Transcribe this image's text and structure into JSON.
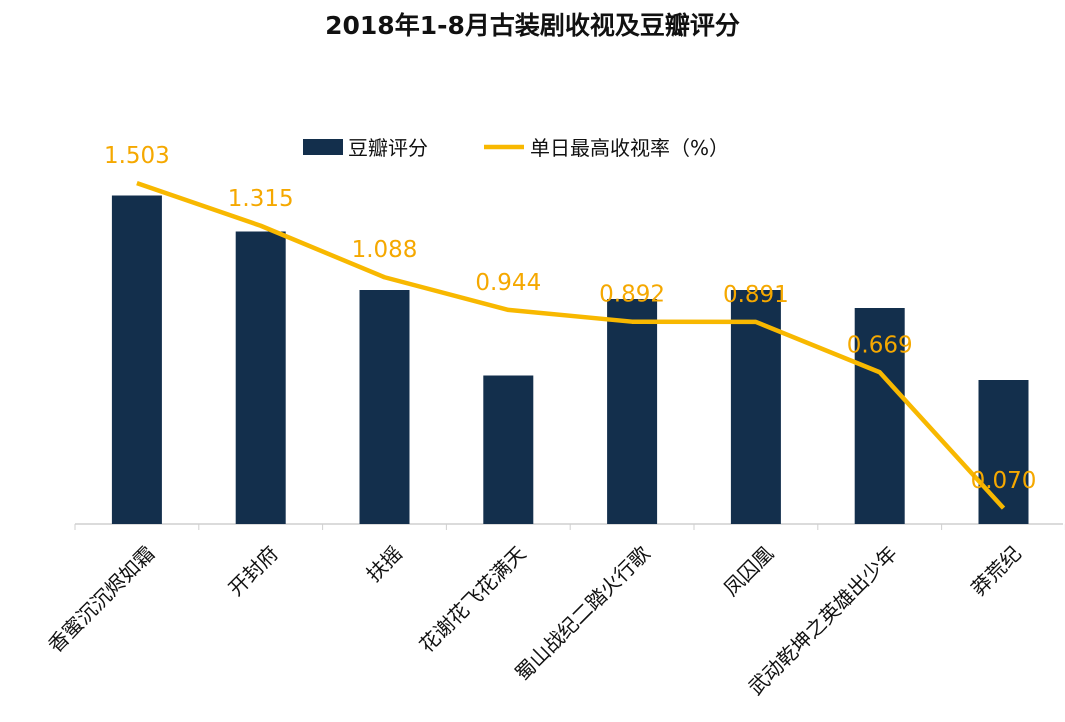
{
  "chart_data": {
    "type": "bar+line",
    "title": "2018年1-8月古装剧收视及豆瓣评分",
    "categories": [
      "香蜜沉沉烬如霜",
      "开封府",
      "扶摇",
      "花谢花飞花满天",
      "蜀山战纪二踏火行歌",
      "凤囚凰",
      "武动乾坤之英雄出少年",
      "莽荒纪"
    ],
    "series": [
      {
        "name": "豆瓣评分",
        "type": "bar",
        "color": "#132f4c",
        "values": [
          7.3,
          6.5,
          5.2,
          3.3,
          5.0,
          5.2,
          4.8,
          3.2
        ]
      },
      {
        "name": "单日最高收视率（%）",
        "type": "line",
        "color": "#f8b800",
        "values": [
          1.503,
          1.315,
          1.088,
          0.944,
          0.892,
          0.891,
          0.669,
          0.07
        ],
        "data_labels": [
          "1.503",
          "1.315",
          "1.088",
          "0.944",
          "0.892",
          "0.891",
          "0.669",
          "0.070"
        ]
      }
    ],
    "legend": "top",
    "grid": false,
    "label_color": "#f5a800"
  }
}
